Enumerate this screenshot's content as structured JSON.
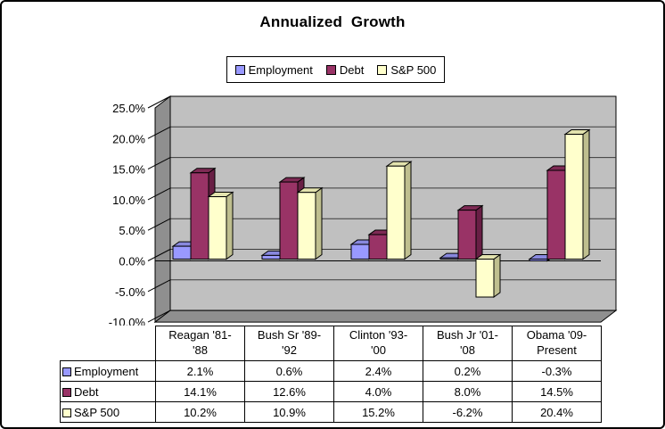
{
  "chart_data": {
    "type": "bar",
    "projection": "3d-column",
    "title": "Annualized  Growth",
    "categories": [
      "Reagan '81-'88",
      "Bush Sr '89-'92",
      "Clinton '93-'00",
      "Bush Jr '01-'08",
      "Obama '09-Present"
    ],
    "categories_display": [
      "Reagan '81-\n'88",
      "Bush Sr '89-\n'92",
      "Clinton '93-\n'00",
      "Bush Jr '01-\n'08",
      "Obama '09-\nPresent"
    ],
    "series": [
      {
        "name": "Employment",
        "values": [
          2.1,
          0.6,
          2.4,
          0.2,
          -0.3
        ],
        "color": "#9999FF",
        "color_top": "#8888DE",
        "color_side": "#6C6CB8"
      },
      {
        "name": "Debt",
        "values": [
          14.1,
          12.6,
          4.0,
          8.0,
          14.5
        ],
        "color": "#993366",
        "color_top": "#7E2A54",
        "color_side": "#691F45"
      },
      {
        "name": "S&P 500",
        "values": [
          10.2,
          10.9,
          15.2,
          -6.2,
          20.4
        ],
        "color": "#FFFFCC",
        "color_top": "#E3E3AE",
        "color_side": "#BFBF8F"
      }
    ],
    "y_axis": {
      "min": -10,
      "max": 25,
      "step": 5,
      "tick_labels": [
        "25.0%",
        "20.0%",
        "15.0%",
        "10.0%",
        "5.0%",
        "0.0%",
        "-5.0%",
        "-10.0%"
      ]
    },
    "walls": {
      "back_color": "#C0C0C0",
      "side_color": "#8F8F8F",
      "floor_color": "#8F8F8F",
      "gridline_color": "#3A3A3A",
      "edge_color": "#000000"
    },
    "legend_position": "top",
    "value_suffix": "%"
  }
}
